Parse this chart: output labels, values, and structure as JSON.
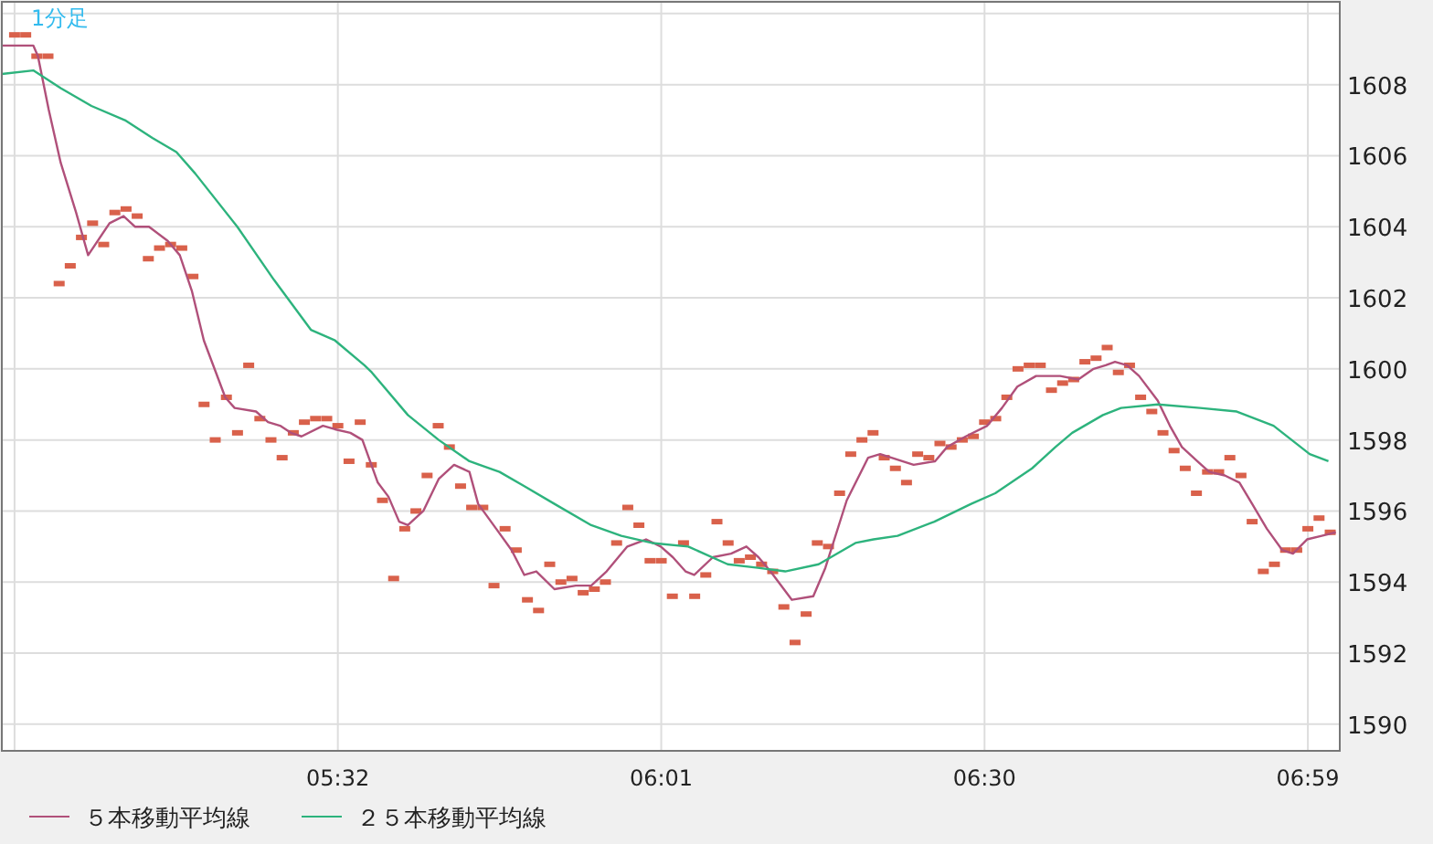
{
  "chart_data": {
    "type": "line",
    "title": "1分足",
    "xlim": [
      5.031,
      7.031
    ],
    "ylim": [
      1589.25,
      1610.33
    ],
    "xticks": [
      {
        "value": 5.05,
        "label": null
      },
      {
        "value": 5.5333,
        "label": "05:32"
      },
      {
        "value": 6.0167,
        "label": "06:01"
      },
      {
        "value": 6.5,
        "label": "06:30"
      },
      {
        "value": 6.9833,
        "label": "06:59"
      }
    ],
    "yticks": [
      1590,
      1592,
      1594,
      1596,
      1598,
      1600,
      1602,
      1604,
      1606,
      1608,
      {
        "value": 1610,
        "label": null
      }
    ],
    "grid": true,
    "legend": "bottom",
    "series": [
      {
        "type": "scatter",
        "marker": "square",
        "color": "#d9614b",
        "x": [
          5.05,
          5.0667,
          5.0833,
          5.1,
          5.1167,
          5.1333,
          5.15,
          5.1667,
          5.1833,
          5.2,
          5.2167,
          5.2333,
          5.25,
          5.2667,
          5.2833,
          5.3,
          5.3167,
          5.3333,
          5.35,
          5.3667,
          5.3833,
          5.4,
          5.4167,
          5.4333,
          5.45,
          5.4667,
          5.4833,
          5.5,
          5.5167,
          5.5333,
          5.55,
          5.5667,
          5.5833,
          5.6,
          5.6167,
          5.6333,
          5.65,
          5.6667,
          5.6833,
          5.7,
          5.7167,
          5.7333,
          5.75,
          5.7667,
          5.7833,
          5.8,
          5.8167,
          5.8333,
          5.85,
          5.8667,
          5.8833,
          5.9,
          5.9167,
          5.9333,
          5.95,
          5.9667,
          5.9833,
          6,
          6.0167,
          6.0333,
          6.05,
          6.0667,
          6.0833,
          6.1,
          6.1167,
          6.1333,
          6.15,
          6.1667,
          6.1833,
          6.2,
          6.2167,
          6.2333,
          6.25,
          6.2667,
          6.2833,
          6.3,
          6.3167,
          6.3333,
          6.35,
          6.3667,
          6.3833,
          6.4,
          6.4167,
          6.4333,
          6.45,
          6.4667,
          6.4833,
          6.5,
          6.5167,
          6.5333,
          6.55,
          6.5667,
          6.5833,
          6.6,
          6.6167,
          6.6333,
          6.65,
          6.6667,
          6.6833,
          6.7,
          6.7167,
          6.7333,
          6.75,
          6.7667,
          6.7833,
          6.8,
          6.8167,
          6.8333,
          6.85,
          6.8667,
          6.8833,
          6.9,
          6.9167,
          6.9333,
          6.95,
          6.9667,
          6.9833,
          7,
          7.0167
        ],
        "values": [
          1609.4,
          1609.4,
          1608.8,
          1608.8,
          1602.4,
          1602.9,
          1603.7,
          1604.1,
          1603.5,
          1604.4,
          1604.5,
          1604.3,
          1603.1,
          1603.4,
          1603.5,
          1603.4,
          1602.6,
          1599.0,
          1598.0,
          1599.2,
          1598.2,
          1600.1,
          1598.6,
          1598.0,
          1597.5,
          1598.2,
          1598.5,
          1598.6,
          1598.6,
          1598.4,
          1597.4,
          1598.5,
          1597.3,
          1596.3,
          1594.1,
          1595.5,
          1596.0,
          1597.0,
          1598.4,
          1597.8,
          1596.7,
          1596.1,
          1596.1,
          1593.9,
          1595.5,
          1594.9,
          1593.5,
          1593.2,
          1594.5,
          1594.0,
          1594.1,
          1593.7,
          1593.8,
          1594.0,
          1595.1,
          1596.1,
          1595.6,
          1594.6,
          1594.6,
          1593.6,
          1595.1,
          1593.6,
          1594.2,
          1595.7,
          1595.1,
          1594.6,
          1594.7,
          1594.5,
          1594.3,
          1593.3,
          1592.3,
          1593.1,
          1595.1,
          1595.0,
          1596.5,
          1597.6,
          1598.0,
          1598.2,
          1597.5,
          1597.2,
          1596.8,
          1597.6,
          1597.5,
          1597.9,
          1597.8,
          1598.0,
          1598.1,
          1598.5,
          1598.6,
          1599.2,
          1600.0,
          1600.1,
          1600.1,
          1599.4,
          1599.6,
          1599.7,
          1600.2,
          1600.3,
          1600.6,
          1599.9,
          1600.1,
          1599.2,
          1598.8,
          1598.2,
          1597.7,
          1597.2,
          1596.5,
          1597.1,
          1597.1,
          1597.5,
          1597.0,
          1595.7,
          1594.3,
          1594.5,
          1594.9,
          1594.9,
          1595.5,
          1595.8,
          1595.4
        ]
      },
      {
        "name": "５本移動平均線",
        "color": "#b0507a",
        "x": [
          5.031,
          5.051,
          5.078,
          5.085,
          5.101,
          5.119,
          5.142,
          5.16,
          5.192,
          5.213,
          5.23,
          5.251,
          5.279,
          5.297,
          5.315,
          5.333,
          5.351,
          5.365,
          5.379,
          5.411,
          5.429,
          5.447,
          5.463,
          5.479,
          5.511,
          5.529,
          5.552,
          5.57,
          5.593,
          5.609,
          5.625,
          5.638,
          5.661,
          5.684,
          5.707,
          5.73,
          5.743,
          5.77,
          5.793,
          5.812,
          5.83,
          5.857,
          5.889,
          5.912,
          5.935,
          5.966,
          5.994,
          6.016,
          6.034,
          6.053,
          6.066,
          6.094,
          6.121,
          6.144,
          6.162,
          6.18,
          6.212,
          6.244,
          6.262,
          6.294,
          6.326,
          6.344,
          6.394,
          6.426,
          6.444,
          6.472,
          6.504,
          6.526,
          6.549,
          6.577,
          6.594,
          6.613,
          6.64,
          6.663,
          6.681,
          6.695,
          6.713,
          6.731,
          6.759,
          6.777,
          6.795,
          6.818,
          6.836,
          6.859,
          6.881,
          6.9,
          6.922,
          6.945,
          6.961,
          6.982,
          7.004,
          7.025
        ],
        "values": [
          1609.1,
          1609.1,
          1609.1,
          1608.8,
          1607.3,
          1605.8,
          1604.4,
          1603.2,
          1604.1,
          1604.3,
          1604.0,
          1604.0,
          1603.6,
          1603.2,
          1602.2,
          1600.8,
          1599.9,
          1599.2,
          1598.9,
          1598.8,
          1598.5,
          1598.4,
          1598.2,
          1598.1,
          1598.4,
          1598.3,
          1598.2,
          1598.0,
          1596.8,
          1596.4,
          1595.7,
          1595.6,
          1596.0,
          1596.9,
          1597.3,
          1597.1,
          1596.2,
          1595.5,
          1594.9,
          1594.2,
          1594.3,
          1593.8,
          1593.9,
          1593.9,
          1594.3,
          1595.0,
          1595.2,
          1595.0,
          1594.7,
          1594.3,
          1594.2,
          1594.7,
          1594.8,
          1595.0,
          1594.7,
          1594.3,
          1593.5,
          1593.6,
          1594.4,
          1596.3,
          1597.5,
          1597.6,
          1597.3,
          1597.4,
          1597.8,
          1598.1,
          1598.4,
          1598.9,
          1599.5,
          1599.8,
          1599.8,
          1599.8,
          1599.7,
          1600.0,
          1600.1,
          1600.2,
          1600.1,
          1599.8,
          1599.1,
          1598.4,
          1597.8,
          1597.4,
          1597.1,
          1597.0,
          1596.8,
          1596.2,
          1595.5,
          1594.9,
          1594.8,
          1595.2,
          1595.3,
          1595.4
        ]
      },
      {
        "name": "２５本移動平均線",
        "color": "#2db37d",
        "x": [
          5.031,
          5.078,
          5.119,
          5.165,
          5.215,
          5.256,
          5.292,
          5.32,
          5.383,
          5.438,
          5.493,
          5.529,
          5.573,
          5.584,
          5.638,
          5.684,
          5.73,
          5.775,
          5.812,
          5.857,
          5.912,
          5.957,
          6.003,
          6.057,
          6.116,
          6.161,
          6.202,
          6.252,
          6.307,
          6.334,
          6.37,
          6.425,
          6.48,
          6.516,
          6.571,
          6.606,
          6.631,
          6.677,
          6.704,
          6.759,
          6.822,
          6.877,
          6.932,
          6.986,
          7.014
        ],
        "values": [
          1608.3,
          1608.4,
          1607.9,
          1607.4,
          1607.0,
          1606.5,
          1606.1,
          1605.5,
          1604.0,
          1602.5,
          1601.1,
          1600.8,
          1600.1,
          1599.9,
          1598.7,
          1598.0,
          1597.4,
          1597.1,
          1596.7,
          1596.2,
          1595.6,
          1595.3,
          1595.1,
          1595.0,
          1594.5,
          1594.4,
          1594.3,
          1594.5,
          1595.1,
          1595.2,
          1595.3,
          1595.7,
          1596.2,
          1596.5,
          1597.2,
          1597.8,
          1598.2,
          1598.7,
          1598.9,
          1599.0,
          1598.9,
          1598.8,
          1598.4,
          1597.6,
          1597.4
        ]
      }
    ]
  }
}
